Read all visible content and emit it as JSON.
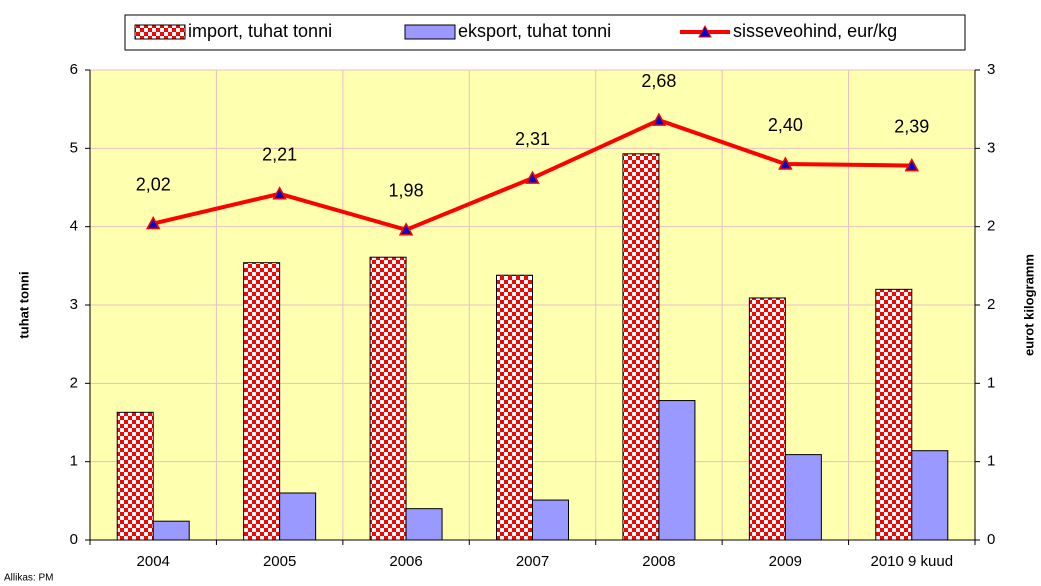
{
  "chart_data": {
    "type": "bar",
    "categories": [
      "2004",
      "2005",
      "2006",
      "2007",
      "2008",
      "2009",
      "2010 9 kuud"
    ],
    "series": [
      {
        "name": "import, tuhat tonni",
        "type": "bar",
        "color": "#ff0000",
        "values": [
          1.63,
          3.54,
          3.61,
          3.38,
          4.93,
          3.09,
          3.2
        ]
      },
      {
        "name": "eksport, tuhat tonni",
        "type": "bar",
        "color": "#9999ff",
        "values": [
          0.24,
          0.6,
          0.4,
          0.51,
          1.78,
          1.09,
          1.14
        ]
      },
      {
        "name": "sisseveohind, eur/kg",
        "type": "line",
        "axis": "y2",
        "color": "#ff0000",
        "marker_color": "#0000cc",
        "values": [
          2.02,
          2.21,
          1.98,
          2.31,
          2.68,
          2.4,
          2.39
        ],
        "value_labels": [
          "2,02",
          "2,21",
          "1,98",
          "2,31",
          "2,68",
          "2,40",
          "2,39"
        ]
      }
    ],
    "ylabel": "tuhat tonni",
    "y2label": "eurot kilogramm",
    "ylim": [
      0,
      6
    ],
    "yticks": [
      0,
      1,
      2,
      3,
      4,
      5,
      6
    ],
    "y2lim": [
      0,
      3
    ],
    "y2ticks": [
      0,
      {
        "value": 0.5,
        "label": "1"
      },
      1,
      {
        "value": 1.5,
        "label": "2"
      },
      2,
      {
        "value": 2.5,
        "label": "3"
      },
      3
    ],
    "grid": true,
    "legend": "top",
    "source": "Allikas: PM"
  }
}
